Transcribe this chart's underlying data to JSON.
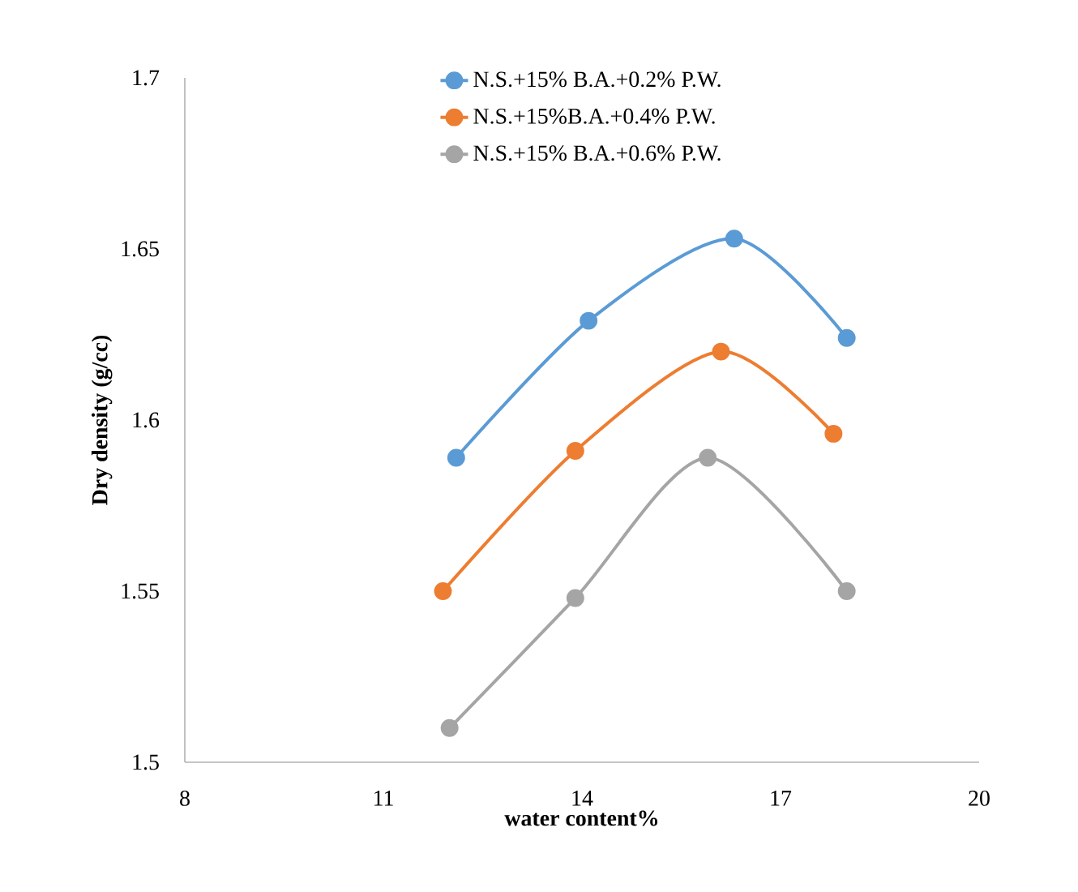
{
  "chart_data": {
    "type": "line",
    "xlabel": "water content%",
    "ylabel": "Dry density (g/cc)",
    "xlim": [
      8,
      20
    ],
    "xticks": [
      8,
      11,
      14,
      17,
      20
    ],
    "ylim": [
      1.5,
      1.7
    ],
    "yticks": [
      1.5,
      1.55,
      1.6,
      1.65,
      1.7
    ],
    "series": [
      {
        "name": "N.S.+15% B.A.+0.2% P.W.",
        "color": "#5b9bd5",
        "x": [
          12.1,
          14.1,
          16.3,
          18.0
        ],
        "values": [
          1.589,
          1.629,
          1.653,
          1.624
        ]
      },
      {
        "name": "N.S.+15%B.A.+0.4% P.W.",
        "color": "#ed7d31",
        "x": [
          11.9,
          13.9,
          16.1,
          17.8
        ],
        "values": [
          1.55,
          1.591,
          1.62,
          1.596
        ]
      },
      {
        "name": "N.S.+15% B.A.+0.6% P.W.",
        "color": "#a5a5a5",
        "x": [
          12.0,
          13.9,
          15.9,
          18.0
        ],
        "values": [
          1.51,
          1.548,
          1.589,
          1.55
        ]
      }
    ],
    "legend": "top",
    "marker": "circle",
    "line_style": "solid",
    "grid": false
  }
}
